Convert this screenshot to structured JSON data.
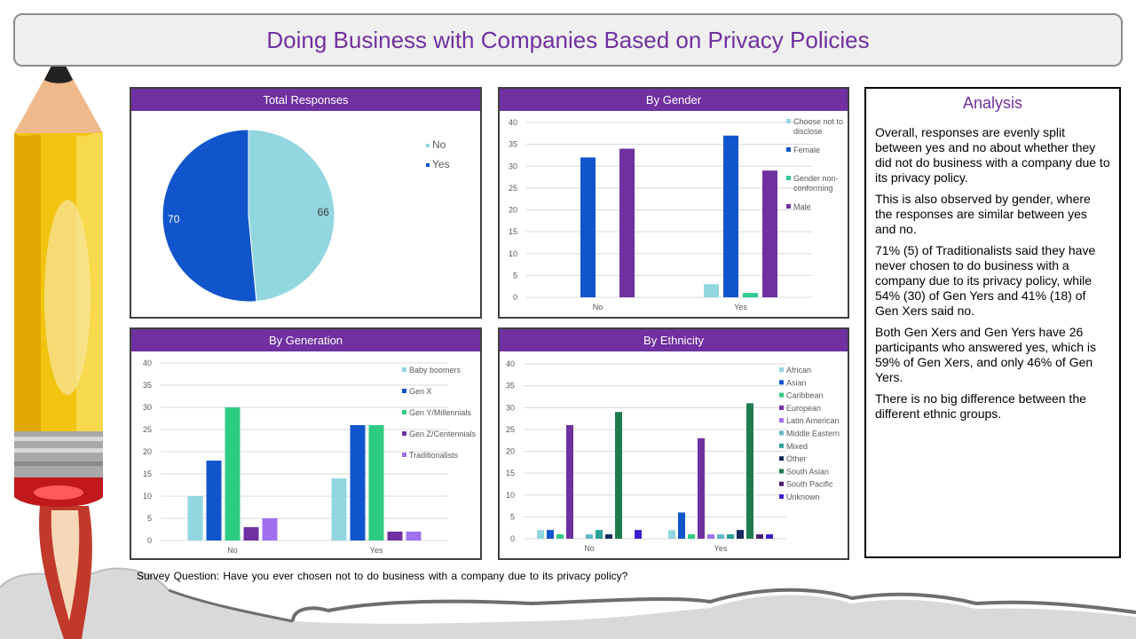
{
  "title": "Doing Business with Companies Based on Privacy Policies",
  "question": "Survey Question: Have you ever chosen not to do business with a company due to its privacy policy?",
  "colors": {
    "accent": "#7030a0",
    "no_light": "#92d6e0",
    "yes_blue": "#1155cc"
  },
  "analysis": {
    "heading": "Analysis",
    "paragraphs": [
      "Overall, responses are evenly split between yes and no about whether they did not do business with a company due to its privacy policy.",
      "This is also observed by gender, where the responses are similar between yes and no.",
      "71% (5)  of Traditionalists said they have never chosen to do business with a company due to its privacy policy, while 54% (30) of Gen Yers and 41% (18) of Gen Xers said no.",
      "Both Gen Xers and Gen Yers have 26 participants who answered yes, which is 59% of Gen Xers, and only 46% of Gen Yers.",
      "There is no big difference between the different ethnic groups."
    ]
  },
  "chart_data": [
    {
      "type": "pie",
      "title": "Total Responses",
      "categories": [
        "No",
        "Yes"
      ],
      "values": [
        66,
        70
      ],
      "colors": [
        "#92d6e0",
        "#1155cc"
      ],
      "legend": "top-right"
    },
    {
      "type": "bar",
      "title": "By Gender",
      "categories": [
        "No",
        "Yes"
      ],
      "ylim": [
        0,
        40
      ],
      "yticks": [
        0,
        5,
        10,
        15,
        20,
        25,
        30,
        35,
        40
      ],
      "grid": true,
      "legend": "right",
      "series": [
        {
          "name": "Choose not to disclose",
          "color": "#92d6e0",
          "values": [
            0,
            3
          ]
        },
        {
          "name": "Female",
          "color": "#1155cc",
          "values": [
            32,
            37
          ]
        },
        {
          "name": "Gender non-conforming",
          "color": "#2ecc8f",
          "values": [
            0,
            1
          ]
        },
        {
          "name": "Male",
          "color": "#7030a0",
          "values": [
            34,
            29
          ]
        }
      ]
    },
    {
      "type": "bar",
      "title": "By Generation",
      "categories": [
        "No",
        "Yes"
      ],
      "ylim": [
        0,
        40
      ],
      "yticks": [
        0,
        5,
        10,
        15,
        20,
        25,
        30,
        35,
        40
      ],
      "grid": true,
      "legend": "right",
      "series": [
        {
          "name": "Baby boomers",
          "color": "#92d6e0",
          "values": [
            10,
            14
          ]
        },
        {
          "name": "Gen X",
          "color": "#1155cc",
          "values": [
            18,
            26
          ]
        },
        {
          "name": "Gen Y/Millennials",
          "color": "#2ecc80",
          "values": [
            30,
            26
          ]
        },
        {
          "name": "Gen Z/Centennials",
          "color": "#7030a0",
          "values": [
            3,
            2
          ]
        },
        {
          "name": "Traditionalists",
          "color": "#a070f0",
          "values": [
            5,
            2
          ]
        }
      ]
    },
    {
      "type": "bar",
      "title": "By Ethnicity",
      "categories": [
        "No",
        "Yes"
      ],
      "ylim": [
        0,
        40
      ],
      "yticks": [
        0,
        5,
        10,
        15,
        20,
        25,
        30,
        35,
        40
      ],
      "grid": true,
      "legend": "right",
      "series": [
        {
          "name": "African",
          "color": "#92d6e0",
          "values": [
            2,
            2
          ]
        },
        {
          "name": "Asian",
          "color": "#1155cc",
          "values": [
            2,
            6
          ]
        },
        {
          "name": "Caribbean",
          "color": "#2ecc80",
          "values": [
            1,
            1
          ]
        },
        {
          "name": "European",
          "color": "#7030a0",
          "values": [
            26,
            23
          ]
        },
        {
          "name": "Latin American",
          "color": "#a070f0",
          "values": [
            0,
            1
          ]
        },
        {
          "name": "Middle Eastern",
          "color": "#5fb8c8",
          "values": [
            1,
            1
          ]
        },
        {
          "name": "Mixed",
          "color": "#2aa198",
          "values": [
            2,
            1
          ]
        },
        {
          "name": "Other",
          "color": "#16285a",
          "values": [
            1,
            2
          ]
        },
        {
          "name": "South Asian",
          "color": "#1e7b50",
          "values": [
            29,
            31
          ]
        },
        {
          "name": "South Pacific",
          "color": "#4b1f6f",
          "values": [
            0,
            1
          ]
        },
        {
          "name": "Unknown",
          "color": "#3a1fcf",
          "values": [
            2,
            1
          ]
        }
      ]
    }
  ]
}
